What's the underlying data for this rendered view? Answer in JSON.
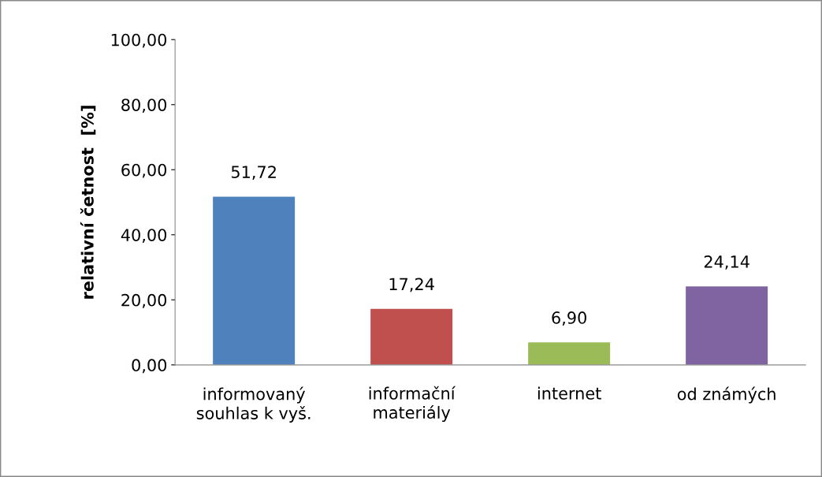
{
  "chart_data": {
    "type": "bar",
    "ylabel": "relativní četnost  [%]",
    "categories": [
      "informovaný\nsouhlas k vyš.",
      "informační\nmateriály",
      "internet",
      "od známých"
    ],
    "values": [
      51.72,
      17.24,
      6.9,
      24.14
    ],
    "colors": [
      "#4f81bd",
      "#c0504d",
      "#9bbb59",
      "#8064a2"
    ],
    "value_labels": [
      "51,72",
      "17,24",
      "6,90",
      "24,14"
    ],
    "ylim": [
      0,
      100
    ],
    "yticks": [
      {
        "value": 0,
        "label": "0,00"
      },
      {
        "value": 20,
        "label": "20,00"
      },
      {
        "value": 40,
        "label": "40,00"
      },
      {
        "value": 60,
        "label": "60,00"
      },
      {
        "value": 80,
        "label": "80,00"
      },
      {
        "value": 100,
        "label": "100,00"
      }
    ],
    "grid": false,
    "legend": false
  }
}
